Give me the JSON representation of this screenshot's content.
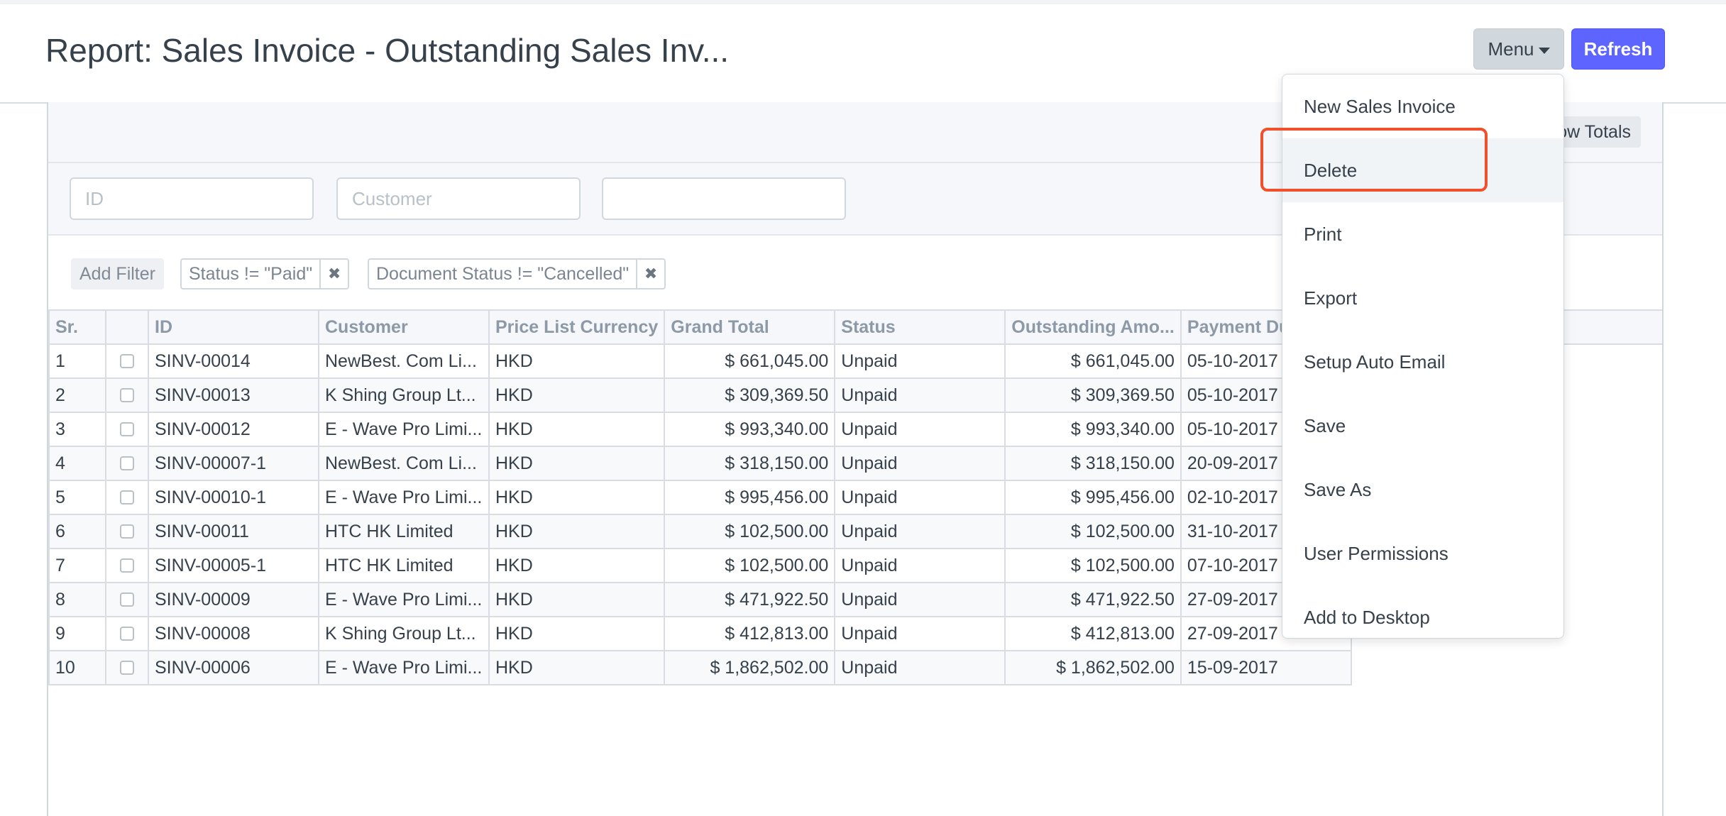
{
  "page": {
    "title": "Report: Sales Invoice - Outstanding Sales Inv...",
    "menu_label": "Menu",
    "refresh_label": "Refresh"
  },
  "toolbar": {
    "show_totals_label": "Show Totals"
  },
  "filters": {
    "id_placeholder": "ID",
    "customer_placeholder": "Customer",
    "third_value": ""
  },
  "tags": {
    "add_filter_label": "Add Filter",
    "items": [
      {
        "label": "Status != \"Paid\"",
        "remove": "✖"
      },
      {
        "label": "Document Status != \"Cancelled\"",
        "remove": "✖"
      }
    ]
  },
  "grid": {
    "columns": [
      "Sr.",
      "",
      "ID",
      "Customer",
      "Price List Currency",
      "Grand Total",
      "Status",
      "Outstanding Amo...",
      "Payment Due"
    ],
    "rows": [
      {
        "sr": "1",
        "id": "SINV-00014",
        "customer": "NewBest. Com Li...",
        "currency": "HKD",
        "grand_total": "$ 661,045.00",
        "status": "Unpaid",
        "outstanding": "$ 661,045.00",
        "due": "05-10-2017"
      },
      {
        "sr": "2",
        "id": "SINV-00013",
        "customer": "K Shing Group Lt...",
        "currency": "HKD",
        "grand_total": "$ 309,369.50",
        "status": "Unpaid",
        "outstanding": "$ 309,369.50",
        "due": "05-10-2017"
      },
      {
        "sr": "3",
        "id": "SINV-00012",
        "customer": "E - Wave Pro Limi...",
        "currency": "HKD",
        "grand_total": "$ 993,340.00",
        "status": "Unpaid",
        "outstanding": "$ 993,340.00",
        "due": "05-10-2017"
      },
      {
        "sr": "4",
        "id": "SINV-00007-1",
        "customer": "NewBest. Com Li...",
        "currency": "HKD",
        "grand_total": "$ 318,150.00",
        "status": "Unpaid",
        "outstanding": "$ 318,150.00",
        "due": "20-09-2017"
      },
      {
        "sr": "5",
        "id": "SINV-00010-1",
        "customer": "E - Wave Pro Limi...",
        "currency": "HKD",
        "grand_total": "$ 995,456.00",
        "status": "Unpaid",
        "outstanding": "$ 995,456.00",
        "due": "02-10-2017"
      },
      {
        "sr": "6",
        "id": "SINV-00011",
        "customer": "HTC HK Limited",
        "currency": "HKD",
        "grand_total": "$ 102,500.00",
        "status": "Unpaid",
        "outstanding": "$ 102,500.00",
        "due": "31-10-2017"
      },
      {
        "sr": "7",
        "id": "SINV-00005-1",
        "customer": "HTC HK Limited",
        "currency": "HKD",
        "grand_total": "$ 102,500.00",
        "status": "Unpaid",
        "outstanding": "$ 102,500.00",
        "due": "07-10-2017"
      },
      {
        "sr": "8",
        "id": "SINV-00009",
        "customer": "E - Wave Pro Limi...",
        "currency": "HKD",
        "grand_total": "$ 471,922.50",
        "status": "Unpaid",
        "outstanding": "$ 471,922.50",
        "due": "27-09-2017"
      },
      {
        "sr": "9",
        "id": "SINV-00008",
        "customer": "K Shing Group Lt...",
        "currency": "HKD",
        "grand_total": "$ 412,813.00",
        "status": "Unpaid",
        "outstanding": "$ 412,813.00",
        "due": "27-09-2017"
      },
      {
        "sr": "10",
        "id": "SINV-00006",
        "customer": "E - Wave Pro Limi...",
        "currency": "HKD",
        "grand_total": "$ 1,862,502.00",
        "status": "Unpaid",
        "outstanding": "$ 1,862,502.00",
        "due": "15-09-2017"
      }
    ]
  },
  "menu": {
    "items": [
      "New Sales Invoice",
      "Delete",
      "Print",
      "Export",
      "Setup Auto Email",
      "Save",
      "Save As",
      "User Permissions",
      "Add to Desktop"
    ],
    "highlight_color": "#f0502b"
  },
  "colors": {
    "primary": "#5e64ff",
    "menu_button": "#d1d8dd"
  }
}
